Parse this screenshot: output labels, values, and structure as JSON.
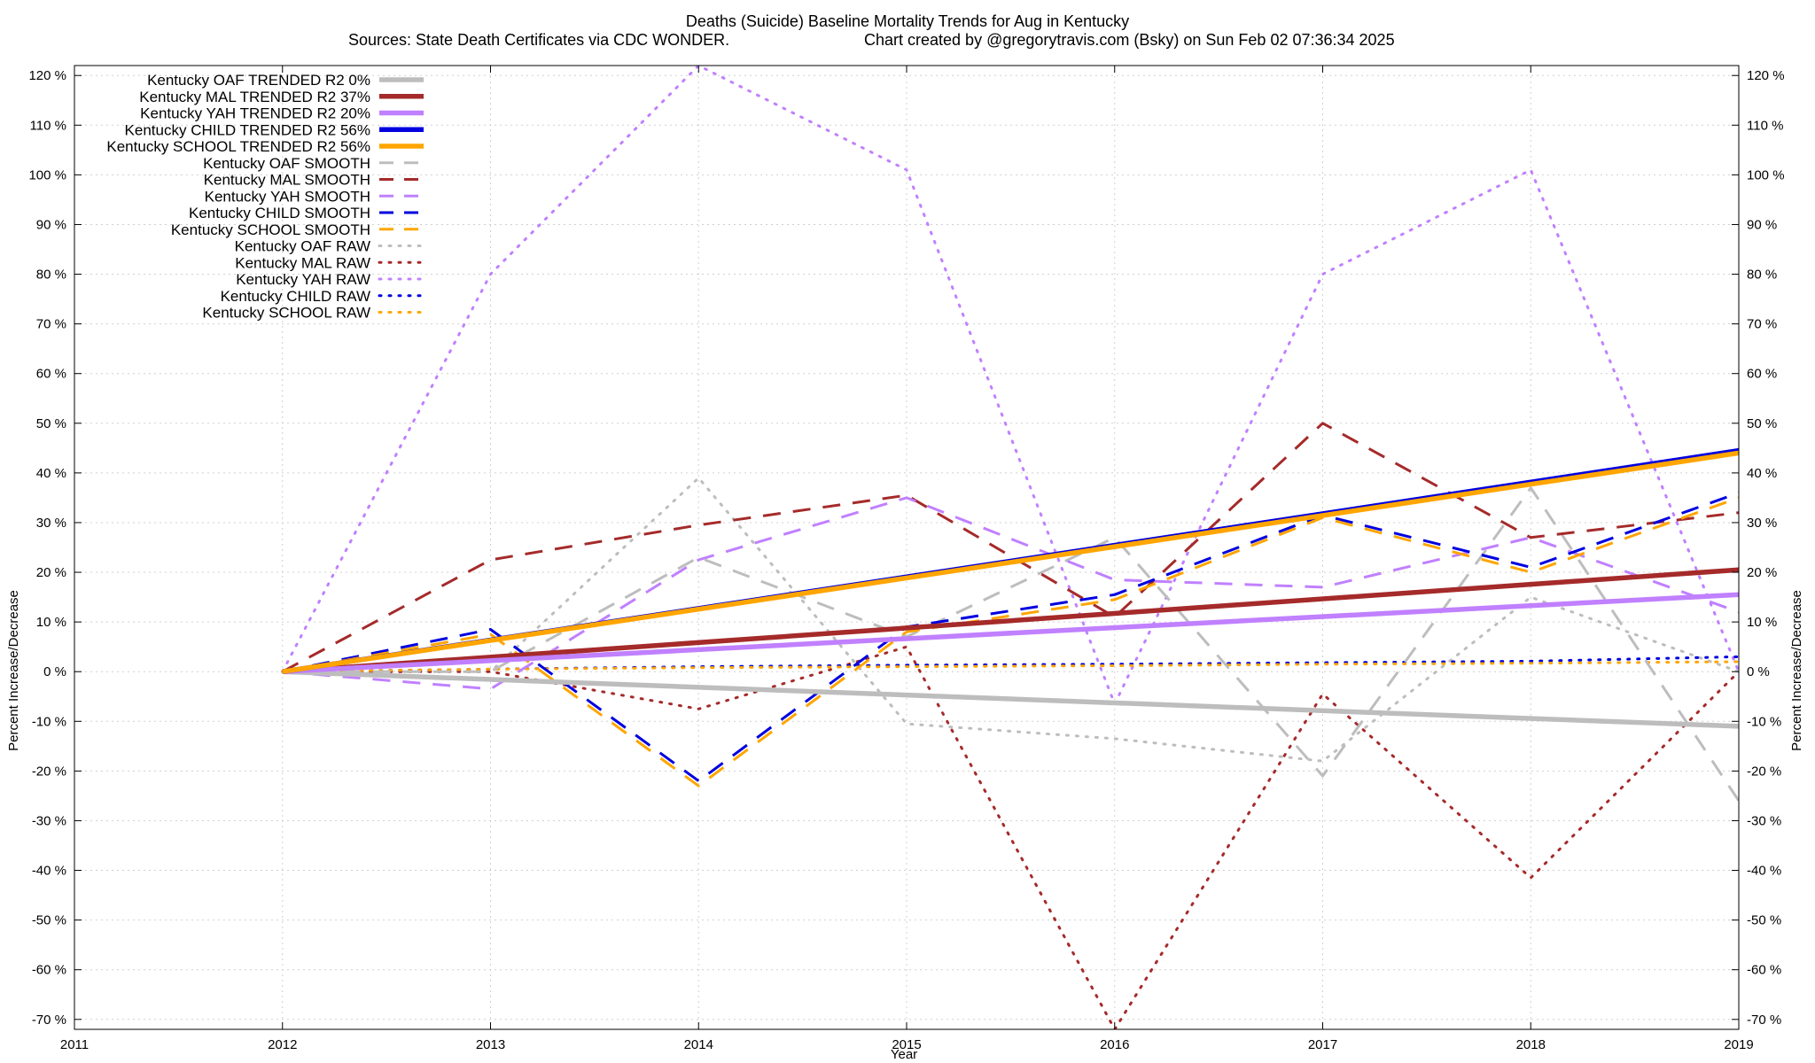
{
  "chart_data": {
    "type": "line",
    "title": "Deaths (Suicide)  Baseline Mortality Trends for Aug in Kentucky",
    "subtitle_left": "Sources: State Death Certificates via CDC WONDER.",
    "subtitle_right": "Chart created by @gregorytravis.com (Bsky) on Sun Feb 02 07:36:34 2025",
    "xlabel": "Year",
    "ylabel": "Percent Increase/Decrease",
    "y2label": "Percent Increase/Decrease",
    "xlim": [
      2011,
      2019
    ],
    "ylim": [
      -72,
      122
    ],
    "x_ticks": [
      "2011",
      "2012",
      "2013",
      "2014",
      "2015",
      "2016",
      "2017",
      "2018",
      "2019"
    ],
    "y_ticks": [
      "120 %",
      "110 %",
      "100 %",
      "90 %",
      "80 %",
      "70 %",
      "60 %",
      "50 %",
      "40 %",
      "30 %",
      "20 %",
      "10 %",
      "0 %",
      "-10 %",
      "-20 %",
      "-30 %",
      "-40 %",
      "-50 %",
      "-60 %",
      "-70 %"
    ],
    "grid": true,
    "legend_position": "top-left",
    "series": [
      {
        "name": "Kentucky OAF TRENDED R2   0%",
        "kind": "trend",
        "color": "#bdbdbd",
        "x": [
          2012,
          2019
        ],
        "y": [
          0,
          -11
        ]
      },
      {
        "name": "Kentucky MAL TRENDED R2  37%",
        "kind": "trend",
        "color": "#a52a2a",
        "x": [
          2012,
          2019
        ],
        "y": [
          0,
          20.5
        ]
      },
      {
        "name": "Kentucky YAH TRENDED R2  20%",
        "kind": "trend",
        "color": "#c080ff",
        "x": [
          2012,
          2019
        ],
        "y": [
          0,
          15.5
        ]
      },
      {
        "name": "Kentucky CHILD TRENDED R2  56%",
        "kind": "trend",
        "color": "#0000e0",
        "x": [
          2012,
          2019
        ],
        "y": [
          0,
          44.5
        ]
      },
      {
        "name": "Kentucky SCHOOL TRENDED R2  56%",
        "kind": "trend",
        "color": "#ffa500",
        "x": [
          2012,
          2019
        ],
        "y": [
          0,
          44
        ]
      },
      {
        "name": "Kentucky OAF SMOOTH",
        "kind": "smooth",
        "color": "#bdbdbd",
        "x": [
          2012,
          2013,
          2014,
          2015,
          2016,
          2017,
          2018,
          2019
        ],
        "y": [
          0,
          0,
          23,
          7,
          27,
          -21,
          37,
          -26
        ]
      },
      {
        "name": "Kentucky MAL SMOOTH",
        "kind": "smooth",
        "color": "#a52a2a",
        "x": [
          2012,
          2013,
          2014,
          2015,
          2016,
          2017,
          2018,
          2019
        ],
        "y": [
          0,
          22.5,
          29.5,
          35.5,
          11,
          50,
          27,
          32
        ]
      },
      {
        "name": "Kentucky YAH SMOOTH",
        "kind": "smooth",
        "color": "#c080ff",
        "x": [
          2012,
          2013,
          2014,
          2015,
          2016,
          2017,
          2018,
          2019
        ],
        "y": [
          0,
          -3.5,
          22.5,
          35,
          18.5,
          17,
          27,
          12
        ]
      },
      {
        "name": "Kentucky CHILD SMOOTH",
        "kind": "smooth",
        "color": "#0000e0",
        "x": [
          2012,
          2013,
          2014,
          2015,
          2016,
          2017,
          2018,
          2019
        ],
        "y": [
          0,
          8.5,
          -22,
          9,
          15.5,
          31.5,
          21,
          36
        ]
      },
      {
        "name": "Kentucky SCHOOL SMOOTH",
        "kind": "smooth",
        "color": "#ffa500",
        "x": [
          2012,
          2013,
          2014,
          2015,
          2016,
          2017,
          2018,
          2019
        ],
        "y": [
          0,
          7.5,
          -23,
          8,
          14.5,
          31,
          20,
          35
        ]
      },
      {
        "name": "Kentucky OAF RAW",
        "kind": "raw",
        "color": "#bdbdbd",
        "x": [
          2012,
          2013,
          2014,
          2015,
          2016,
          2017,
          2018,
          2019
        ],
        "y": [
          0,
          0,
          39,
          -10.5,
          -13.5,
          -18,
          15,
          0
        ]
      },
      {
        "name": "Kentucky MAL RAW",
        "kind": "raw",
        "color": "#a52a2a",
        "x": [
          2012,
          2013,
          2014,
          2015,
          2016,
          2017,
          2018,
          2019
        ],
        "y": [
          0,
          0,
          -7.5,
          5,
          -72,
          -4.5,
          -41.5,
          0
        ]
      },
      {
        "name": "Kentucky YAH RAW",
        "kind": "raw",
        "color": "#c080ff",
        "x": [
          2012,
          2013,
          2014,
          2015,
          2016,
          2017,
          2018,
          2019
        ],
        "y": [
          0,
          80,
          122,
          101,
          -6.5,
          80,
          101,
          0
        ]
      },
      {
        "name": "Kentucky CHILD RAW",
        "kind": "raw",
        "color": "#0000e0",
        "x": [
          2012,
          2013,
          2014,
          2015,
          2016,
          2017,
          2018,
          2019
        ],
        "y": [
          0,
          0.5,
          1,
          1.3,
          1.5,
          1.8,
          2.1,
          3
        ]
      },
      {
        "name": "Kentucky SCHOOL RAW",
        "kind": "raw",
        "color": "#ffa500",
        "x": [
          2012,
          2013,
          2014,
          2015,
          2016,
          2017,
          2018,
          2019
        ],
        "y": [
          0,
          0.5,
          0.8,
          1,
          1.2,
          1.5,
          1.7,
          2
        ]
      }
    ]
  }
}
